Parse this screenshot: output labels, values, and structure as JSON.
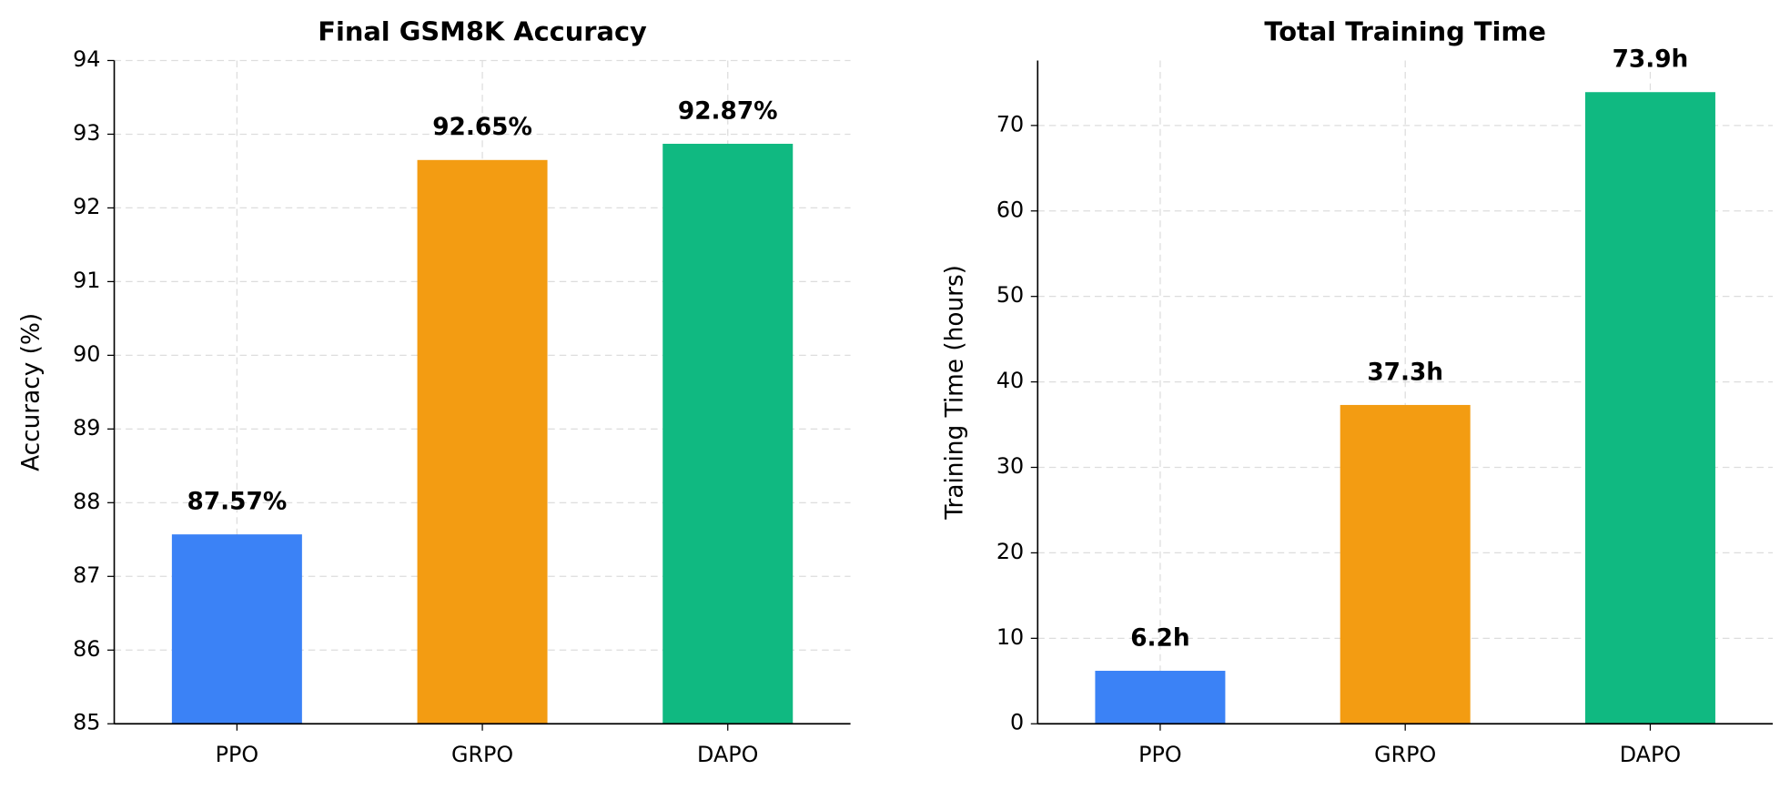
{
  "chart_data": [
    {
      "type": "bar",
      "title": "Final GSM8K Accuracy",
      "y_label": "Accuracy (%)",
      "categories": [
        "PPO",
        "GRPO",
        "DAPO"
      ],
      "values": [
        87.57,
        92.65,
        92.87
      ],
      "value_labels": [
        "87.57%",
        "92.65%",
        "92.87%"
      ],
      "colors": [
        "#3b82f6",
        "#f39c12",
        "#10b981"
      ],
      "ylim": [
        85,
        94
      ],
      "yticks": [
        85,
        86,
        87,
        88,
        89,
        90,
        91,
        92,
        93,
        94
      ],
      "grid": true
    },
    {
      "type": "bar",
      "title": "Total Training Time",
      "y_label": "Training Time (hours)",
      "categories": [
        "PPO",
        "GRPO",
        "DAPO"
      ],
      "values": [
        6.2,
        37.3,
        73.9
      ],
      "value_labels": [
        "6.2h",
        "37.3h",
        "73.9h"
      ],
      "colors": [
        "#3b82f6",
        "#f39c12",
        "#10b981"
      ],
      "ylim": [
        0,
        77.6
      ],
      "yticks": [
        0,
        10,
        20,
        30,
        40,
        50,
        60,
        70
      ],
      "grid": true
    }
  ]
}
